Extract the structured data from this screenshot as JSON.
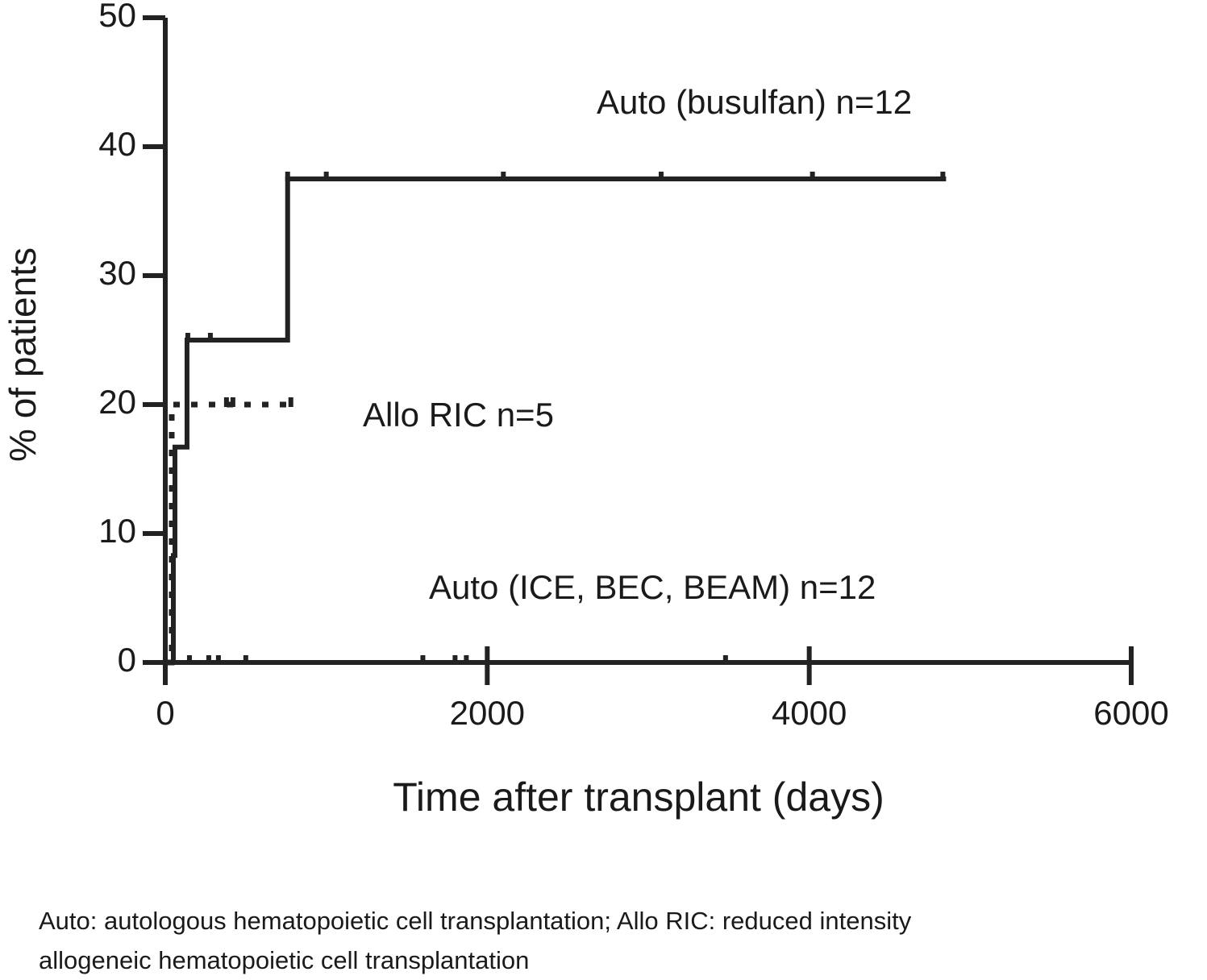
{
  "chart_data": {
    "type": "step",
    "x_label": "Time after transplant (days)",
    "y_label": "% of patients",
    "xlim": [
      0,
      6000
    ],
    "xticks": [
      0,
      2000,
      4000,
      6000
    ],
    "ylim": [
      0,
      50
    ],
    "yticks": [
      0,
      10,
      20,
      30,
      40,
      50
    ],
    "series": [
      {
        "name": "Auto (busulfan) n=12",
        "color": "#222222",
        "dash": false,
        "x": [
          0,
          50,
          60,
          135,
          760,
          4850
        ],
        "values": [
          0,
          8.3,
          16.7,
          25,
          37.5,
          37.5
        ],
        "censored": [
          140,
          280,
          760,
          1000,
          2100,
          3080,
          4020,
          4830
        ]
      },
      {
        "name": "Allo RIC n=5",
        "color": "#222222",
        "dash": true,
        "x": [
          0,
          40,
          800
        ],
        "values": [
          0,
          20,
          20
        ],
        "censored": [
          380,
          420,
          780
        ]
      },
      {
        "name": "Auto (ICE, BEC, BEAM) n=12",
        "color": "#222222",
        "dash": false,
        "x": [
          0,
          6000
        ],
        "values": [
          0,
          0
        ],
        "censored": [
          150,
          270,
          330,
          500,
          1600,
          1800,
          1870,
          3480
        ]
      }
    ],
    "footnote": [
      "Auto: autologous hematopoietic cell transplantation; Allo RIC: reduced intensity",
      "allogeneic hematopoietic cell transplantation"
    ]
  }
}
